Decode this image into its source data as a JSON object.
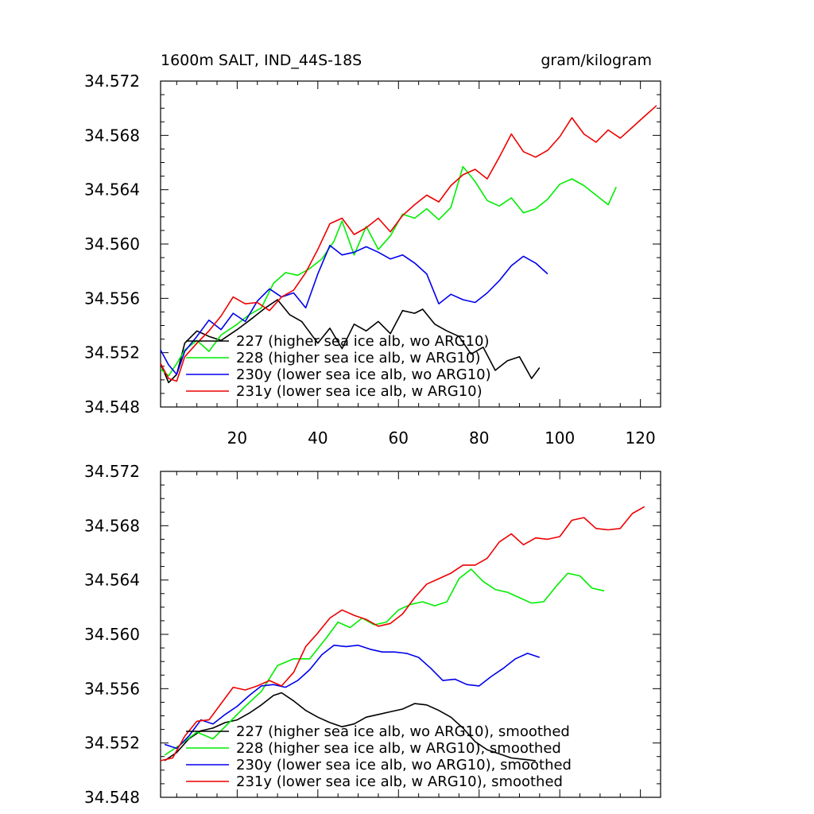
{
  "figure": {
    "title_left": "1600m SALT, IND_44S-18S",
    "title_right": "gram/kilogram"
  },
  "chart_data": [
    {
      "type": "line",
      "title": "1600m SALT, IND_44S-18S",
      "units": "gram/kilogram",
      "xlim": [
        1,
        125
      ],
      "ylim": [
        34.548,
        34.572
      ],
      "yticks": [
        34.548,
        34.552,
        34.556,
        34.56,
        34.564,
        34.568,
        34.572
      ],
      "ytick_labels": [
        "34.548",
        "34.552",
        "34.556",
        "34.560",
        "34.564",
        "34.568",
        "34.572"
      ],
      "xticks": [
        20,
        40,
        60,
        80,
        100,
        120
      ],
      "xtick_labels": [
        "20",
        "40",
        "60",
        "80",
        "100",
        "120"
      ],
      "grid": false,
      "legend_position": "lower-left inside",
      "series": [
        {
          "name": "227 (higher sea ice alb, wo ARG10)",
          "color": "#000000",
          "x": [
            1,
            3,
            5,
            7,
            10,
            13,
            16,
            20,
            24,
            27,
            30,
            33,
            36,
            40,
            43,
            46,
            49,
            52,
            55,
            58,
            61,
            64,
            66,
            69,
            72,
            75,
            78,
            81,
            84,
            87,
            90,
            93,
            95
          ],
          "y": [
            34.5512,
            34.5498,
            34.5504,
            34.5527,
            34.5536,
            34.5532,
            34.5529,
            34.5537,
            34.5546,
            34.5553,
            34.5559,
            34.5548,
            34.5543,
            34.5527,
            34.5538,
            34.5523,
            34.5541,
            34.5536,
            34.5543,
            34.5534,
            34.5551,
            34.5549,
            34.5552,
            34.5541,
            34.5536,
            34.5532,
            34.5519,
            34.5524,
            34.5507,
            34.5514,
            34.5517,
            34.5501,
            34.5509
          ]
        },
        {
          "name": "228 (higher sea ice alb, w ARG10)",
          "color": "#00ee00",
          "x": [
            1,
            3,
            5,
            7,
            10,
            13,
            16,
            20,
            23,
            26,
            29,
            32,
            35,
            38,
            41,
            44,
            46,
            49,
            52,
            55,
            58,
            61,
            64,
            67,
            70,
            73,
            76,
            79,
            82,
            85,
            88,
            91,
            94,
            97,
            100,
            103,
            106,
            109,
            112,
            114
          ],
          "y": [
            34.5508,
            34.5503,
            34.5512,
            34.5522,
            34.5529,
            34.5521,
            34.5533,
            34.5541,
            34.5548,
            34.5553,
            34.5571,
            34.5579,
            34.5577,
            34.5582,
            34.5589,
            34.5602,
            34.5617,
            34.5592,
            34.5613,
            34.5596,
            34.5606,
            34.5622,
            34.5619,
            34.5626,
            34.5618,
            34.5627,
            34.5657,
            34.5646,
            34.5632,
            34.5628,
            34.5634,
            34.5623,
            34.5626,
            34.5633,
            34.5644,
            34.5648,
            34.5643,
            34.5636,
            34.5629,
            34.5642
          ]
        },
        {
          "name": "230y (lower sea ice alb, wo ARG10)",
          "color": "#0000ee",
          "x": [
            1,
            3,
            5,
            7,
            10,
            13,
            16,
            19,
            22,
            25,
            28,
            31,
            34,
            37,
            40,
            43,
            46,
            49,
            52,
            55,
            58,
            61,
            64,
            67,
            70,
            73,
            76,
            79,
            82,
            85,
            88,
            91,
            94,
            97
          ],
          "y": [
            34.5522,
            34.5511,
            34.5504,
            34.5521,
            34.5532,
            34.5544,
            34.5537,
            34.5549,
            34.5543,
            34.5558,
            34.5567,
            34.5561,
            34.5564,
            34.5553,
            34.5578,
            34.5599,
            34.5592,
            34.5594,
            34.5598,
            34.5594,
            34.5589,
            34.5592,
            34.5586,
            34.5578,
            34.5556,
            34.5563,
            34.5559,
            34.5557,
            34.5564,
            34.5573,
            34.5584,
            34.5591,
            34.5586,
            34.5578
          ]
        },
        {
          "name": "231y (lower sea ice alb, w ARG10)",
          "color": "#ee0000",
          "x": [
            1,
            3,
            5,
            7,
            10,
            13,
            16,
            19,
            22,
            25,
            28,
            31,
            34,
            37,
            40,
            43,
            46,
            49,
            52,
            55,
            58,
            61,
            64,
            67,
            70,
            73,
            76,
            79,
            82,
            85,
            88,
            91,
            94,
            97,
            100,
            103,
            106,
            109,
            112,
            115,
            118,
            121,
            124
          ],
          "y": [
            34.5512,
            34.5501,
            34.5499,
            34.5517,
            34.5527,
            34.5536,
            34.5547,
            34.5561,
            34.5556,
            34.5557,
            34.5551,
            34.5561,
            34.5566,
            34.5579,
            34.5596,
            34.5615,
            34.5619,
            34.5607,
            34.5612,
            34.5619,
            34.5609,
            34.5621,
            34.5629,
            34.5636,
            34.5631,
            34.5643,
            34.5651,
            34.5655,
            34.5648,
            34.5664,
            34.5681,
            34.5668,
            34.5664,
            34.5669,
            34.5679,
            34.5693,
            34.5681,
            34.5675,
            34.5684,
            34.5678,
            34.5686,
            34.5694,
            34.5702
          ]
        }
      ]
    },
    {
      "type": "line",
      "xlim": [
        1,
        125
      ],
      "ylim": [
        34.548,
        34.572
      ],
      "yticks": [
        34.548,
        34.552,
        34.556,
        34.56,
        34.564,
        34.568,
        34.572
      ],
      "ytick_labels": [
        "34.548",
        "34.552",
        "34.556",
        "34.560",
        "34.564",
        "34.568",
        "34.572"
      ],
      "xticks": [
        20,
        40,
        60,
        80,
        100,
        120
      ],
      "grid": false,
      "legend_position": "lower-left inside",
      "series": [
        {
          "name": "227 (higher sea ice alb, wo ARG10), smoothed",
          "color": "#000000",
          "x": [
            2,
            5,
            8,
            11,
            14,
            17,
            20,
            23,
            26,
            29,
            31,
            34,
            37,
            40,
            43,
            46,
            49,
            52,
            55,
            58,
            61,
            64,
            67,
            70,
            73,
            76,
            79,
            82,
            85,
            88,
            91,
            94
          ],
          "y": [
            34.5507,
            34.5513,
            34.5523,
            34.5529,
            34.5531,
            34.5535,
            34.5537,
            34.5542,
            34.5548,
            34.5555,
            34.5557,
            34.5551,
            34.5544,
            34.5539,
            34.5535,
            34.5532,
            34.5534,
            34.5539,
            34.5541,
            34.5543,
            34.5545,
            34.5549,
            34.5548,
            34.5544,
            34.5539,
            34.5531,
            34.5521,
            34.5515,
            34.5512,
            34.5509,
            34.5508,
            34.5507
          ]
        },
        {
          "name": "228 (higher sea ice alb, w ARG10), smoothed",
          "color": "#00ee00",
          "x": [
            2,
            6,
            10,
            14,
            18,
            22,
            26,
            30,
            34,
            38,
            42,
            45,
            48,
            51,
            54,
            57,
            60,
            63,
            66,
            69,
            72,
            75,
            78,
            81,
            84,
            87,
            90,
            93,
            96,
            99,
            102,
            105,
            108,
            111
          ],
          "y": [
            34.5511,
            34.5519,
            34.5528,
            34.5523,
            34.5535,
            34.5547,
            34.5558,
            34.5577,
            34.5582,
            34.5582,
            34.5597,
            34.5609,
            34.5605,
            34.5612,
            34.5607,
            34.5609,
            34.5618,
            34.5622,
            34.5624,
            34.5621,
            34.5624,
            34.5641,
            34.5648,
            34.5639,
            34.5633,
            34.5631,
            34.5627,
            34.5623,
            34.5624,
            34.5635,
            34.5645,
            34.5643,
            34.5634,
            34.5632
          ]
        },
        {
          "name": "230y (lower sea ice alb, wo ARG10), smoothed",
          "color": "#0000ee",
          "x": [
            2,
            5,
            8,
            11,
            14,
            17,
            20,
            23,
            26,
            29,
            32,
            35,
            38,
            41,
            44,
            47,
            50,
            53,
            56,
            59,
            62,
            65,
            68,
            71,
            74,
            77,
            80,
            83,
            86,
            89,
            92,
            95
          ],
          "y": [
            34.5519,
            34.5516,
            34.5525,
            34.5537,
            34.5534,
            34.5541,
            34.5547,
            34.5555,
            34.5562,
            34.5563,
            34.5561,
            34.5566,
            34.5574,
            34.5585,
            34.5592,
            34.5591,
            34.5592,
            34.5589,
            34.5587,
            34.5587,
            34.5586,
            34.5583,
            34.5575,
            34.5566,
            34.5567,
            34.5563,
            34.5562,
            34.5569,
            34.5575,
            34.5582,
            34.5586,
            34.5583
          ]
        },
        {
          "name": "231y (lower sea ice alb, w ARG10), smoothed",
          "color": "#ee0000",
          "x": [
            1,
            4,
            7,
            10,
            13,
            16,
            19,
            22,
            25,
            28,
            31,
            34,
            37,
            40,
            43,
            46,
            49,
            52,
            55,
            58,
            61,
            64,
            67,
            70,
            73,
            76,
            79,
            82,
            85,
            88,
            91,
            94,
            97,
            100,
            103,
            106,
            109,
            112,
            115,
            118,
            121
          ],
          "y": [
            34.5507,
            34.5509,
            34.5525,
            34.5536,
            34.5537,
            34.5549,
            34.5561,
            34.5559,
            34.5562,
            34.5566,
            34.5562,
            34.5572,
            34.5591,
            34.5601,
            34.5612,
            34.5618,
            34.5614,
            34.5611,
            34.5606,
            34.5608,
            34.5615,
            34.5627,
            34.5637,
            34.5641,
            34.5645,
            34.5651,
            34.5651,
            34.5656,
            34.5668,
            34.5674,
            34.5666,
            34.5671,
            34.567,
            34.5672,
            34.5684,
            34.5686,
            34.5678,
            34.5677,
            34.5678,
            34.5689,
            34.5694
          ]
        }
      ]
    }
  ]
}
